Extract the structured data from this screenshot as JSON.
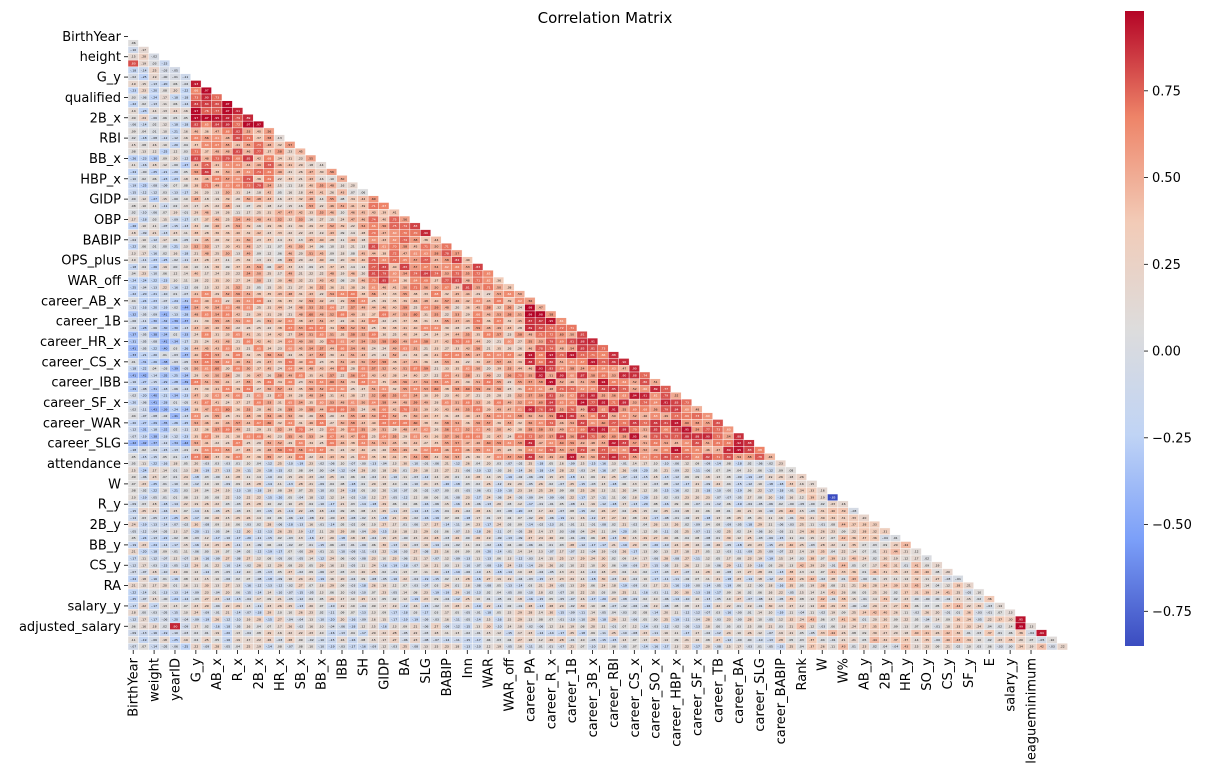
{
  "chart_data": {
    "type": "heatmap",
    "title": "Correlation Matrix",
    "matrix_shape": "lower-triangle",
    "n_variables": 91,
    "value_range": [
      -0.85,
      1.0
    ],
    "annotated": true,
    "annotation_precision": 2,
    "colormap": {
      "name": "coolwarm",
      "stops": [
        "#3b4cc0",
        "#7b9ff9",
        "#c0d4f5",
        "#dddcdc",
        "#f2cbb7",
        "#ee8468",
        "#b40426"
      ]
    },
    "colorbar": {
      "min": -0.85,
      "max": 0.98,
      "ticks": [
        -0.75,
        -0.5,
        -0.25,
        0.0,
        0.25,
        0.5,
        0.75
      ],
      "tick_labels": [
        "−0.75",
        "−0.50",
        "−0.25",
        "0.00",
        "0.25",
        "0.50",
        "0.75"
      ]
    },
    "y_tick_labels": [
      {
        "index": 0,
        "label": "BirthYear"
      },
      {
        "index": 3,
        "label": "height"
      },
      {
        "index": 6,
        "label": "G_y"
      },
      {
        "index": 9,
        "label": "qualified"
      },
      {
        "index": 12,
        "label": "2B_x"
      },
      {
        "index": 15,
        "label": "RBI"
      },
      {
        "index": 18,
        "label": "BB_x"
      },
      {
        "index": 21,
        "label": "HBP_x"
      },
      {
        "index": 24,
        "label": "GIDP"
      },
      {
        "index": 27,
        "label": "OBP"
      },
      {
        "index": 30,
        "label": "BABIP"
      },
      {
        "index": 33,
        "label": "OPS_plus"
      },
      {
        "index": 36,
        "label": "WAR_off"
      },
      {
        "index": 39,
        "label": "career_AB_x"
      },
      {
        "index": 42,
        "label": "career_1B"
      },
      {
        "index": 45,
        "label": "career_HR_x"
      },
      {
        "index": 48,
        "label": "career_CS_x"
      },
      {
        "index": 51,
        "label": "career_IBB"
      },
      {
        "index": 54,
        "label": "career_SF_x"
      },
      {
        "index": 57,
        "label": "career_WAR"
      },
      {
        "index": 60,
        "label": "career_SLG"
      },
      {
        "index": 63,
        "label": "attendance"
      },
      {
        "index": 66,
        "label": "W"
      },
      {
        "index": 69,
        "label": "R_y"
      },
      {
        "index": 72,
        "label": "2B_y"
      },
      {
        "index": 75,
        "label": "BB_y"
      },
      {
        "index": 78,
        "label": "CS_y"
      },
      {
        "index": 81,
        "label": "RA"
      },
      {
        "index": 84,
        "label": "salary_y"
      },
      {
        "index": 87,
        "label": "adjusted_salary"
      }
    ],
    "x_tick_labels": [
      {
        "index": 0,
        "label": "BirthYear"
      },
      {
        "index": 2,
        "label": "weight"
      },
      {
        "index": 4,
        "label": "yearID"
      },
      {
        "index": 6,
        "label": "G_y"
      },
      {
        "index": 8,
        "label": "AB_x"
      },
      {
        "index": 10,
        "label": "R_x"
      },
      {
        "index": 12,
        "label": "2B_x"
      },
      {
        "index": 14,
        "label": "HR_x"
      },
      {
        "index": 16,
        "label": "SB_x"
      },
      {
        "index": 18,
        "label": "BB_x"
      },
      {
        "index": 20,
        "label": "IBB"
      },
      {
        "index": 22,
        "label": "SH"
      },
      {
        "index": 24,
        "label": "GIDP"
      },
      {
        "index": 26,
        "label": "BA"
      },
      {
        "index": 28,
        "label": "SLG"
      },
      {
        "index": 30,
        "label": "BABIP"
      },
      {
        "index": 32,
        "label": "Inn"
      },
      {
        "index": 34,
        "label": "WAR"
      },
      {
        "index": 36,
        "label": "WAR_off"
      },
      {
        "index": 38,
        "label": "career_PA"
      },
      {
        "index": 40,
        "label": "career_R_x"
      },
      {
        "index": 42,
        "label": "career_1B"
      },
      {
        "index": 44,
        "label": "career_3B_x"
      },
      {
        "index": 46,
        "label": "career_RBI"
      },
      {
        "index": 48,
        "label": "career_CS_x"
      },
      {
        "index": 50,
        "label": "career_SO_x"
      },
      {
        "index": 52,
        "label": "career_HBP_x"
      },
      {
        "index": 54,
        "label": "career_SF_x"
      },
      {
        "index": 56,
        "label": "career_TB"
      },
      {
        "index": 58,
        "label": "career_BA"
      },
      {
        "index": 60,
        "label": "career_SLG"
      },
      {
        "index": 62,
        "label": "career_BABIP"
      },
      {
        "index": 64,
        "label": "Rank"
      },
      {
        "index": 66,
        "label": "W"
      },
      {
        "index": 68,
        "label": "W%"
      },
      {
        "index": 70,
        "label": "AB_y"
      },
      {
        "index": 72,
        "label": "2B_y"
      },
      {
        "index": 74,
        "label": "HR_y"
      },
      {
        "index": 76,
        "label": "SO_y"
      },
      {
        "index": 78,
        "label": "CS_y"
      },
      {
        "index": 80,
        "label": "SF_y"
      },
      {
        "index": 82,
        "label": "E"
      },
      {
        "index": 84,
        "label": "salary_y"
      },
      {
        "index": 86,
        "label": "leagueminimum"
      }
    ],
    "blocks": [
      {
        "rows": [
          0,
          5
        ],
        "cols": [
          0,
          5
        ],
        "value": 0.05
      },
      {
        "rows": [
          6,
          13
        ],
        "cols": [
          0,
          5
        ],
        "value": 0.0
      },
      {
        "rows": [
          6,
          13
        ],
        "cols": [
          6,
          13
        ],
        "value": 0.9
      },
      {
        "rows": [
          14,
          22
        ],
        "cols": [
          0,
          5
        ],
        "value": -0.05
      },
      {
        "rows": [
          14,
          22
        ],
        "cols": [
          6,
          13
        ],
        "value": 0.6
      },
      {
        "rows": [
          14,
          22
        ],
        "cols": [
          14,
          22
        ],
        "value": 0.35
      },
      {
        "rows": [
          23,
          37
        ],
        "cols": [
          0,
          5
        ],
        "value": -0.02
      },
      {
        "rows": [
          23,
          37
        ],
        "cols": [
          6,
          22
        ],
        "value": 0.3
      },
      {
        "rows": [
          23,
          37
        ],
        "cols": [
          23,
          37
        ],
        "value": 0.6
      },
      {
        "rows": [
          38,
          62
        ],
        "cols": [
          0,
          5
        ],
        "value": -0.2
      },
      {
        "rows": [
          38,
          62
        ],
        "cols": [
          6,
          37
        ],
        "value": 0.45
      },
      {
        "rows": [
          38,
          62
        ],
        "cols": [
          38,
          62
        ],
        "value": 0.7
      },
      {
        "rows": [
          63,
          90
        ],
        "cols": [
          0,
          5
        ],
        "value": 0.0
      },
      {
        "rows": [
          63,
          90
        ],
        "cols": [
          6,
          62
        ],
        "value": 0.05
      },
      {
        "rows": [
          63,
          90
        ],
        "cols": [
          63,
          90
        ],
        "value": 0.2
      }
    ],
    "highlights": [
      {
        "row": 40,
        "col": 38,
        "value": 0.98
      },
      {
        "row": 41,
        "col": 38,
        "value": 0.99
      },
      {
        "row": 41,
        "col": 39,
        "value": 0.98
      },
      {
        "row": 42,
        "col": 40,
        "value": 0.95
      },
      {
        "row": 7,
        "col": 6,
        "value": 0.93
      },
      {
        "row": 29,
        "col": 28,
        "value": 0.9
      },
      {
        "row": 68,
        "col": 67,
        "value": -0.85
      },
      {
        "row": 86,
        "col": 85,
        "value": 0.95
      },
      {
        "row": 87,
        "col": 85,
        "value": 0.99
      },
      {
        "row": 88,
        "col": 87,
        "value": 0.94
      },
      {
        "row": 4,
        "col": 0,
        "value": 0.8
      },
      {
        "row": 87,
        "col": 4,
        "value": 0.9
      }
    ]
  }
}
